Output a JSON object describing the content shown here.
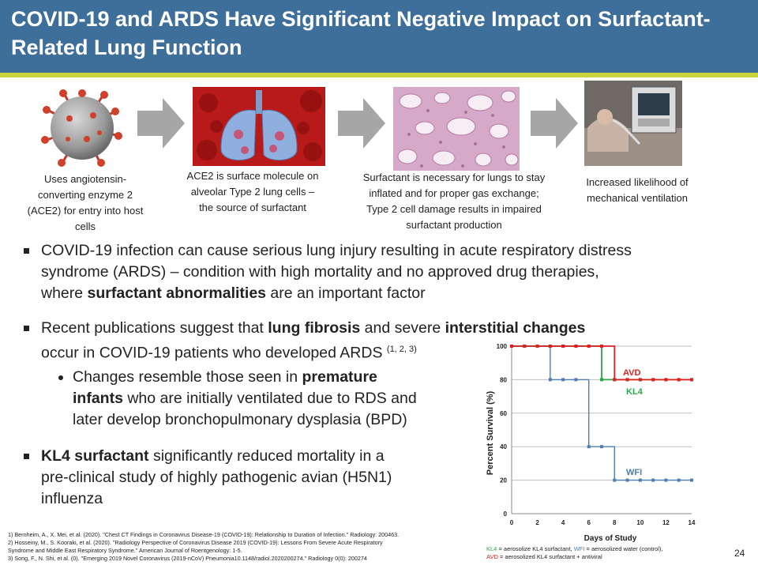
{
  "header": {
    "title_line1": "COVID-19 and ARDS Have Significant Negative Impact on Surfactant-",
    "title_line2": "Related Lung Function"
  },
  "flow": [
    {
      "caption": "Uses angiotensin-converting enzyme 2 (ACE2) for entry into host cells",
      "lines": [
        "Uses angiotensin-",
        "converting enzyme 2",
        "(ACE2) for entry into host",
        "cells"
      ]
    },
    {
      "caption": "ACE2 is surface molecule on alveolar Type 2 lung cells – the source of surfactant",
      "lines": [
        "ACE2 is surface molecule on",
        "alveolar Type 2 lung cells –",
        "the source of surfactant"
      ]
    },
    {
      "caption": "Surfactant is necessary for lungs to stay inflated and for proper gas exchange; Type 2 cell damage results in impaired surfactant production",
      "lines": [
        "Surfactant is necessary for lungs to stay",
        "inflated and for proper  gas exchange;",
        "Type 2 cell damage results in impaired",
        "surfactant production"
      ]
    },
    {
      "caption": "Increased likelihood of mechanical ventilation",
      "lines": [
        "Increased likelihood of",
        "mechanical ventilation"
      ]
    }
  ],
  "bullets": {
    "b1": {
      "l1": "COVID-19 infection can cause serious lung injury resulting in acute respiratory distress",
      "l2": "syndrome (ARDS) – condition with high mortality and no approved drug therapies,",
      "l3a": "where ",
      "l3b": "surfactant abnormalities",
      "l3c": " are an important factor"
    },
    "b2": {
      "l1a": "Recent publications suggest that ",
      "l1b": "lung fibrosis",
      "l1c": " and severe ",
      "l1d": "interstitial changes",
      "l2a": "occur in COVID-19 patients who developed ARDS ",
      "l2sup": "(1, 2, 3)"
    },
    "sub": {
      "l1a": "Changes resemble those seen in ",
      "l1b": "premature",
      "l2a": "infants",
      "l2b": " who are initially ventilated due to RDS and",
      "l3": "later develop bronchopulmonary dysplasia (BPD)"
    },
    "b3": {
      "l1a": "KL4 surfactant",
      "l1b": " significantly reduced mortality in a",
      "l2": "pre-clinical study of highly pathogenic avian (H5N1)",
      "l3": "influenza"
    }
  },
  "chart_data": {
    "type": "line",
    "title": "",
    "xlabel": "Days of Study",
    "ylabel": "Percent Survival (%)",
    "xlim": [
      0,
      14
    ],
    "ylim": [
      0,
      100
    ],
    "xticks": [
      0,
      2,
      4,
      6,
      8,
      10,
      12,
      14
    ],
    "yticks": [
      0,
      20,
      40,
      60,
      80,
      100
    ],
    "grid": "horizontal",
    "step": true,
    "series": [
      {
        "name": "AVD",
        "color": "#e02020",
        "x": [
          0,
          1,
          2,
          3,
          4,
          5,
          6,
          7,
          8,
          9,
          10,
          11,
          12,
          13,
          14
        ],
        "y": [
          100,
          100,
          100,
          100,
          100,
          100,
          100,
          100,
          80,
          80,
          80,
          80,
          80,
          80,
          80
        ]
      },
      {
        "name": "KL4",
        "color": "#2aa84a",
        "x": [
          0,
          1,
          2,
          3,
          4,
          5,
          6,
          7,
          8,
          9,
          10,
          11,
          12,
          13,
          14
        ],
        "y": [
          100,
          100,
          100,
          100,
          100,
          100,
          100,
          80,
          80,
          80,
          80,
          80,
          80,
          80,
          80
        ]
      },
      {
        "name": "WFI",
        "color": "#4f7fb0",
        "x": [
          0,
          1,
          2,
          3,
          4,
          5,
          6,
          7,
          8,
          9,
          10,
          11,
          12,
          13,
          14
        ],
        "y": [
          100,
          100,
          100,
          80,
          80,
          80,
          40,
          40,
          20,
          20,
          20,
          20,
          20,
          20,
          20
        ]
      }
    ],
    "markers": {
      "AVD": {
        "x": [
          0,
          1,
          2,
          3,
          4,
          5,
          6,
          7,
          8,
          9,
          10,
          11,
          12,
          13,
          14
        ],
        "y": [
          100,
          100,
          100,
          100,
          100,
          100,
          100,
          100,
          80,
          80,
          80,
          80,
          80,
          80,
          80
        ]
      },
      "KL4": {
        "x": [
          0,
          1,
          2,
          3,
          4,
          5,
          6,
          7,
          8,
          9,
          10,
          11,
          12,
          13,
          14
        ],
        "y": [
          100,
          100,
          100,
          100,
          100,
          100,
          100,
          80,
          80,
          80,
          80,
          80,
          80,
          80,
          80
        ]
      },
      "WFI": {
        "x": [
          0,
          1,
          2,
          3,
          4,
          5,
          6,
          7,
          8,
          9,
          10,
          11,
          12,
          13,
          14
        ],
        "y": [
          100,
          100,
          100,
          80,
          80,
          80,
          40,
          40,
          20,
          20,
          20,
          20,
          20,
          20,
          20
        ]
      }
    }
  },
  "chart_note": {
    "kl4_key": "KL4",
    "kl4_text": " = aerosolize  KL4 surfactant,  ",
    "wfi_key": "WFI",
    "wfi_text": " = aerosolized  water  (control),",
    "avd_key": "AVD",
    "avd_text": " = aerosolized  KL4 surfactant + antiviral"
  },
  "references": [
    "1) Bernheim, A., X. Mei, et al. (2020). \"Chest CT Findings in Coronavirus Disease-19 (COVID-19): Relationship to Duration of Infection.\" Radiology: 200463.",
    "2) Hosseiny, M., S. Kooraki, et al. (2020). \"Radiology Perspective  of Coronavirus Disease 2019 (COVID-19): Lessons From Severe  Acute Respiratory",
    "Syndrome and Middle East Respiratory Syndrome.\"  American  Journal of Roentgenology:  1-5.",
    "3) Song, F., N. Shi, et al. (0). \"Emerging  2019 Novel Coronavirus (2019-nCoV) Pneumonia10.1148/radiol.2020200274.\" Radiology 0(0): 200274"
  ],
  "page_number": "24",
  "colors": {
    "header": "#3e6f9a",
    "accent_line": "#c9d33a",
    "avd": "#e02020",
    "kl4": "#2aa84a",
    "wfi": "#4f7fb0"
  }
}
